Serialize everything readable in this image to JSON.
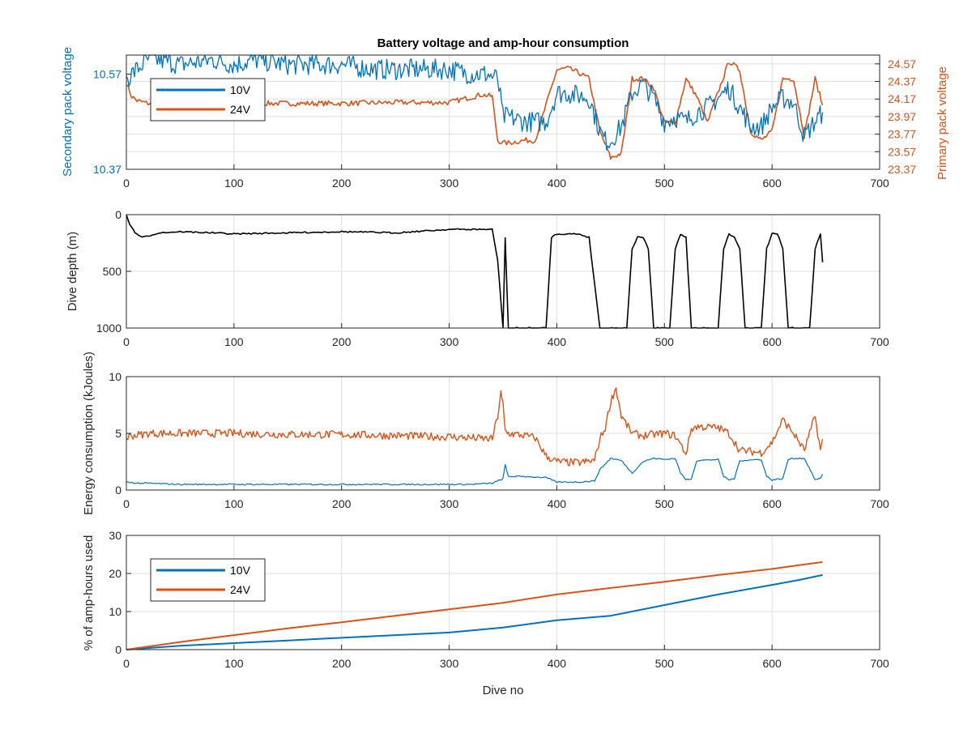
{
  "chart_data": [
    {
      "type": "line",
      "title": "Battery voltage and amp-hour consumption",
      "xlim": [
        0,
        700
      ],
      "x_ticks": [
        0,
        100,
        200,
        300,
        400,
        500,
        600,
        700
      ],
      "left_axis": {
        "label": "Secondary pack voltage",
        "ylim": [
          10.37,
          10.61
        ],
        "ticks": [
          10.37,
          10.57
        ],
        "color": "#0072BD"
      },
      "right_axis": {
        "label": "Primary pack voltage",
        "ylim": [
          23.37,
          24.67
        ],
        "ticks": [
          23.37,
          23.57,
          23.77,
          23.97,
          24.17,
          24.37,
          24.57
        ],
        "color": "#D95319"
      },
      "legend": {
        "placement": "top-left"
      },
      "grid": true,
      "series": [
        {
          "name": "10V",
          "axis": "left",
          "color": "#0072BD",
          "x": [
            0,
            10,
            20,
            30,
            50,
            80,
            100,
            120,
            150,
            180,
            200,
            230,
            260,
            280,
            300,
            320,
            335,
            345,
            350,
            355,
            370,
            390,
            400,
            410,
            430,
            440,
            445,
            450,
            460,
            470,
            480,
            490,
            500,
            510,
            520,
            530,
            540,
            560,
            580,
            590,
            600,
            610,
            620,
            630,
            640,
            647
          ],
          "y": [
            10.56,
            10.58,
            10.6,
            10.6,
            10.59,
            10.6,
            10.59,
            10.6,
            10.59,
            10.59,
            10.59,
            10.58,
            10.58,
            10.58,
            10.58,
            10.57,
            10.57,
            10.56,
            10.48,
            10.48,
            10.47,
            10.47,
            10.53,
            10.53,
            10.52,
            10.45,
            10.43,
            10.43,
            10.46,
            10.53,
            10.55,
            10.52,
            10.47,
            10.48,
            10.47,
            10.49,
            10.5,
            10.54,
            10.46,
            10.46,
            10.5,
            10.52,
            10.51,
            10.44,
            10.47,
            10.49
          ]
        },
        {
          "name": "24V",
          "axis": "right",
          "color": "#D95319",
          "x": [
            0,
            5,
            10,
            20,
            30,
            60,
            100,
            150,
            200,
            250,
            300,
            330,
            340,
            345,
            350,
            355,
            370,
            380,
            390,
            400,
            410,
            420,
            430,
            440,
            450,
            460,
            470,
            480,
            490,
            500,
            510,
            520,
            530,
            540,
            560,
            570,
            580,
            590,
            600,
            610,
            620,
            630,
            640,
            647
          ],
          "y": [
            24.35,
            24.2,
            24.15,
            24.12,
            24.12,
            24.12,
            24.12,
            24.12,
            24.12,
            24.13,
            24.13,
            24.22,
            24.2,
            23.7,
            23.67,
            23.67,
            23.7,
            23.7,
            24.1,
            24.5,
            24.52,
            24.47,
            24.4,
            23.8,
            23.5,
            23.55,
            24.4,
            24.4,
            24.3,
            23.9,
            23.9,
            24.4,
            24.2,
            23.9,
            24.6,
            24.5,
            23.8,
            23.7,
            23.8,
            24.4,
            24.4,
            23.75,
            24.4,
            24.1
          ]
        }
      ]
    },
    {
      "type": "line",
      "title": "",
      "xlim": [
        0,
        700
      ],
      "x_ticks": [
        0,
        100,
        200,
        300,
        400,
        500,
        600,
        700
      ],
      "ylabel": "Dive depth (m)",
      "ylim": [
        0,
        1000
      ],
      "y_reversed": true,
      "y_ticks": [
        0,
        500,
        1000
      ],
      "y_tick_labels": [
        "0",
        "500",
        "1000"
      ],
      "grid": true,
      "series": [
        {
          "color": "#000000",
          "x": [
            0,
            3,
            8,
            15,
            20,
            30,
            50,
            80,
            100,
            150,
            200,
            250,
            300,
            340,
            345,
            350,
            352,
            355,
            390,
            395,
            400,
            410,
            420,
            430,
            440,
            445,
            455,
            465,
            470,
            475,
            480,
            485,
            490,
            505,
            510,
            515,
            520,
            525,
            550,
            555,
            560,
            565,
            570,
            575,
            590,
            595,
            600,
            605,
            610,
            615,
            635,
            640,
            645,
            647
          ],
          "y": [
            0,
            80,
            160,
            200,
            190,
            160,
            150,
            160,
            170,
            160,
            150,
            160,
            130,
            130,
            400,
            1000,
            200,
            1000,
            1000,
            200,
            170,
            170,
            170,
            200,
            1000,
            1000,
            1000,
            1000,
            300,
            200,
            200,
            300,
            1000,
            1000,
            300,
            170,
            200,
            1000,
            1000,
            300,
            170,
            200,
            300,
            1000,
            1000,
            300,
            170,
            170,
            300,
            1000,
            1000,
            300,
            170,
            420
          ]
        }
      ]
    },
    {
      "type": "line",
      "title": "",
      "xlim": [
        0,
        700
      ],
      "x_ticks": [
        0,
        100,
        200,
        300,
        400,
        500,
        600,
        700
      ],
      "ylabel": "Energy consumption (kJoules)",
      "ylim": [
        0,
        10
      ],
      "y_ticks": [
        0,
        5,
        10
      ],
      "grid": true,
      "series": [
        {
          "color": "#D95319",
          "x": [
            0,
            5,
            15,
            20,
            30,
            50,
            100,
            150,
            200,
            250,
            295,
            300,
            320,
            340,
            345,
            348,
            350,
            352,
            355,
            370,
            380,
            390,
            400,
            420,
            435,
            440,
            445,
            450,
            455,
            460,
            470,
            480,
            500,
            510,
            520,
            525,
            530,
            550,
            560,
            570,
            590,
            600,
            610,
            620,
            630,
            640,
            645,
            647
          ],
          "y": [
            4.6,
            4.8,
            4.9,
            5.0,
            5.0,
            5.0,
            5.0,
            4.9,
            4.9,
            4.8,
            4.7,
            4.7,
            4.6,
            4.5,
            6.5,
            8.5,
            7.5,
            5.2,
            5.0,
            4.8,
            4.6,
            3.0,
            2.5,
            2.4,
            2.6,
            4.5,
            5.5,
            7.8,
            9.0,
            6.5,
            5.0,
            4.8,
            5.0,
            4.8,
            3.2,
            5.4,
            5.6,
            5.5,
            5.0,
            3.5,
            3.3,
            4.2,
            6.2,
            5.0,
            3.5,
            6.5,
            3.5,
            4.5
          ]
        },
        {
          "color": "#0072BD",
          "x": [
            0,
            10,
            20,
            50,
            100,
            150,
            200,
            250,
            295,
            300,
            320,
            340,
            350,
            352,
            355,
            370,
            390,
            400,
            420,
            435,
            440,
            450,
            460,
            470,
            480,
            490,
            500,
            510,
            515,
            520,
            525,
            530,
            550,
            555,
            560,
            565,
            570,
            590,
            595,
            600,
            610,
            615,
            620,
            630,
            640,
            645,
            647
          ],
          "y": [
            0.7,
            0.6,
            0.6,
            0.5,
            0.5,
            0.5,
            0.5,
            0.5,
            0.5,
            0.5,
            0.5,
            0.6,
            1.0,
            2.2,
            1.2,
            1.2,
            1.1,
            0.7,
            0.7,
            0.8,
            1.8,
            2.8,
            2.6,
            1.5,
            2.5,
            2.8,
            2.7,
            2.8,
            1.5,
            0.9,
            1.0,
            2.6,
            2.7,
            1.2,
            0.9,
            1.0,
            2.6,
            2.7,
            1.2,
            0.9,
            1.0,
            2.7,
            2.8,
            2.8,
            0.9,
            1.0,
            1.4
          ]
        }
      ]
    },
    {
      "type": "line",
      "title": "",
      "xlim": [
        0,
        700
      ],
      "x_ticks": [
        0,
        100,
        200,
        300,
        400,
        500,
        600,
        700
      ],
      "xlabel": "Dive no",
      "ylabel": "% of amp-hours used",
      "ylim": [
        0,
        30
      ],
      "y_ticks": [
        0,
        10,
        20,
        30
      ],
      "legend": {
        "placement": "top-left"
      },
      "grid": true,
      "series": [
        {
          "name": "10V",
          "color": "#0072BD",
          "x": [
            0,
            50,
            100,
            150,
            200,
            250,
            300,
            350,
            400,
            450,
            500,
            550,
            600,
            625,
            647
          ],
          "y": [
            0,
            1.0,
            1.7,
            2.4,
            3.1,
            3.8,
            4.5,
            5.8,
            7.7,
            8.9,
            11.7,
            14.5,
            17.0,
            18.3,
            19.6
          ]
        },
        {
          "name": "24V",
          "color": "#D95319",
          "x": [
            0,
            50,
            100,
            150,
            200,
            250,
            300,
            350,
            400,
            450,
            500,
            550,
            600,
            625,
            647
          ],
          "y": [
            0,
            2.0,
            3.8,
            5.6,
            7.2,
            8.9,
            10.6,
            12.3,
            14.5,
            16.2,
            17.8,
            19.6,
            21.2,
            22.2,
            23.0
          ]
        }
      ]
    }
  ]
}
